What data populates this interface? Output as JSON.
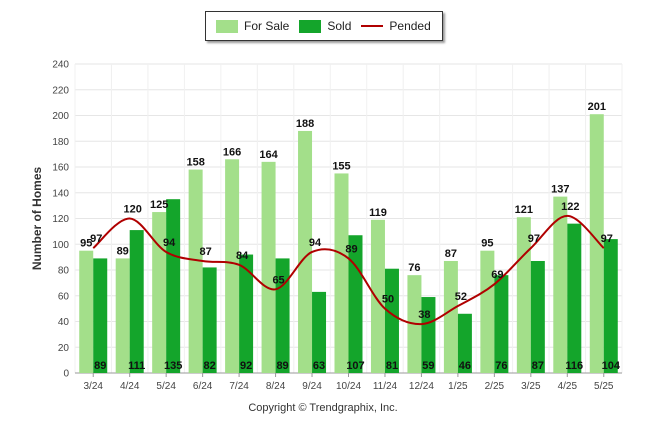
{
  "chart_data": {
    "type": "bar",
    "categories": [
      "3/24",
      "4/24",
      "5/24",
      "6/24",
      "7/24",
      "8/24",
      "9/24",
      "10/24",
      "11/24",
      "12/24",
      "1/25",
      "2/25",
      "3/25",
      "4/25",
      "5/25"
    ],
    "series": [
      {
        "name": "For Sale",
        "type": "bar",
        "color": "#a3df8a",
        "values": [
          95,
          89,
          125,
          158,
          166,
          164,
          188,
          155,
          119,
          76,
          87,
          95,
          121,
          137,
          201
        ]
      },
      {
        "name": "Sold",
        "type": "bar",
        "color": "#14a52b",
        "values": [
          89,
          111,
          135,
          82,
          92,
          89,
          63,
          107,
          81,
          59,
          46,
          76,
          87,
          116,
          104
        ]
      },
      {
        "name": "Pended",
        "type": "line",
        "color": "#b00000",
        "values": [
          97,
          120,
          94,
          87,
          84,
          65,
          94,
          89,
          50,
          38,
          52,
          69,
          97,
          122,
          97
        ]
      }
    ],
    "ylabel": "Number of Homes",
    "xlabel": "",
    "ylim": [
      0,
      240
    ],
    "yticks": [
      0,
      20,
      40,
      60,
      80,
      100,
      120,
      140,
      160,
      180,
      200,
      220,
      240
    ],
    "grid": true,
    "legend_position": "top-center"
  },
  "legend": {
    "for_sale": "For Sale",
    "sold": "Sold",
    "pended": "Pended"
  },
  "footer": {
    "copyright": "Copyright © Trendgraphix, Inc."
  }
}
